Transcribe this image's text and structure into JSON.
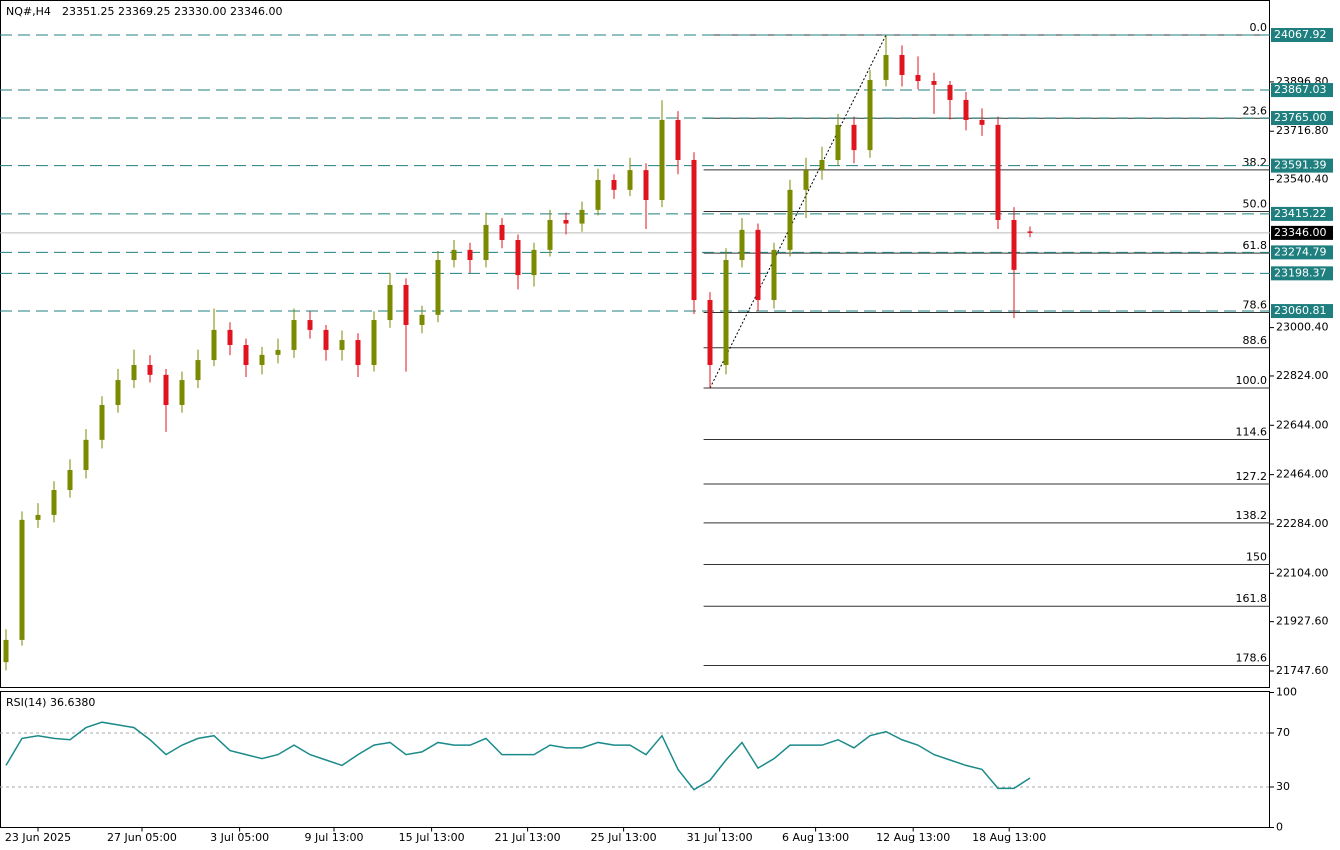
{
  "header": {
    "symbol": "NQ#,H4",
    "open": "23351.25",
    "high": "23369.25",
    "low": "23330.00",
    "close": "23346.00"
  },
  "chart_data": {
    "type": "candlestick",
    "bull_color": "#7b8a00",
    "bear_color": "#e0141e",
    "xlim": [
      -0.375,
      79
    ],
    "ylim": [
      21685.6,
      24195.6
    ],
    "xticks": [
      {
        "value": 2,
        "label": "23 Jun 2025"
      },
      {
        "value": 8.5,
        "label": "27 Jun 05:00"
      },
      {
        "value": 14.6,
        "label": "3 Jul 05:00"
      },
      {
        "value": 20.5,
        "label": "9 Jul 13:00"
      },
      {
        "value": 26.6,
        "label": "15 Jul 13:00"
      },
      {
        "value": 32.6,
        "label": "21 Jul 13:00"
      },
      {
        "value": 38.6,
        "label": "25 Jul 13:00"
      },
      {
        "value": 44.6,
        "label": "31 Jul 13:00"
      },
      {
        "value": 50.6,
        "label": "6 Aug 13:00"
      },
      {
        "value": 56.7,
        "label": "12 Aug 13:00"
      },
      {
        "value": 62.7,
        "label": "18 Aug 13:00"
      }
    ],
    "yticks": [
      {
        "value": 23896.8,
        "label": "23896.80"
      },
      {
        "value": 23716.8,
        "label": "23716.80"
      },
      {
        "value": 23540.4,
        "label": "23540.40"
      },
      {
        "value": 23000.4,
        "label": "23000.40"
      },
      {
        "value": 22824,
        "label": "22824.00"
      },
      {
        "value": 22644,
        "label": "22644.00"
      },
      {
        "value": 22464,
        "label": "22464.00"
      },
      {
        "value": 22284,
        "label": "22284.00"
      },
      {
        "value": 22104,
        "label": "22104.00"
      },
      {
        "value": 21927.6,
        "label": "21927.60"
      },
      {
        "value": 21747.6,
        "label": "21747.60"
      }
    ],
    "levels": [
      {
        "value": 24067.92,
        "label": "24067.92"
      },
      {
        "value": 23867.03,
        "label": "23867.03"
      },
      {
        "value": 23765,
        "label": "23765.00"
      },
      {
        "value": 23591.39,
        "label": "23591.39"
      },
      {
        "value": 23415.22,
        "label": "23415.22"
      },
      {
        "value": 23274.79,
        "label": "23274.79"
      },
      {
        "value": 23198.37,
        "label": "23198.37"
      },
      {
        "value": 23060.81,
        "label": "23060.81"
      }
    ],
    "level_color": "#1f7f7f",
    "current_price": {
      "value": 23346,
      "label": "23346.00"
    },
    "fib": {
      "high": 24067.92,
      "low": 22780,
      "start": 43.6,
      "levels": [
        {
          "value": 0,
          "label": "0.0"
        },
        23.6,
        38.2,
        {
          "value": 50,
          "label": "50.0"
        },
        61.8,
        78.6,
        88.6,
        {
          "value": 100,
          "label": "100.0"
        },
        114.6,
        127.2,
        138.2,
        150,
        161.8,
        178.6
      ]
    },
    "candles": [
      [
        21780,
        21900,
        21750,
        21861
      ],
      [
        21861,
        22330,
        21840,
        22299
      ],
      [
        22299,
        22360,
        22270,
        22317
      ],
      [
        22317,
        22440,
        22290,
        22408
      ],
      [
        22408,
        22520,
        22380,
        22481
      ],
      [
        22481,
        22630,
        22450,
        22591
      ],
      [
        22591,
        22750,
        22560,
        22718
      ],
      [
        22718,
        22850,
        22690,
        22809
      ],
      [
        22809,
        22920,
        22780,
        22864
      ],
      [
        22864,
        22900,
        22800,
        22828
      ],
      [
        22828,
        22850,
        22620,
        22718
      ],
      [
        22718,
        22840,
        22690,
        22809
      ],
      [
        22809,
        22920,
        22780,
        22882
      ],
      [
        22882,
        23070,
        22860,
        22992
      ],
      [
        22992,
        23020,
        22900,
        22937
      ],
      [
        22937,
        22960,
        22820,
        22864
      ],
      [
        22864,
        22930,
        22830,
        22901
      ],
      [
        22901,
        22960,
        22870,
        22919
      ],
      [
        22919,
        23070,
        22890,
        23028
      ],
      [
        23028,
        23060,
        22960,
        22992
      ],
      [
        22992,
        23010,
        22880,
        22919
      ],
      [
        22919,
        22990,
        22880,
        22955
      ],
      [
        22955,
        22980,
        22820,
        22864
      ],
      [
        22864,
        23060,
        22840,
        23028
      ],
      [
        23028,
        23200,
        23000,
        23156
      ],
      [
        23156,
        23180,
        22840,
        23010
      ],
      [
        23010,
        23080,
        22980,
        23047
      ],
      [
        23047,
        23280,
        23020,
        23247
      ],
      [
        23247,
        23320,
        23220,
        23284
      ],
      [
        23284,
        23310,
        23200,
        23247
      ],
      [
        23247,
        23420,
        23220,
        23375
      ],
      [
        23375,
        23400,
        23290,
        23320
      ],
      [
        23320,
        23340,
        23140,
        23192
      ],
      [
        23192,
        23310,
        23150,
        23284
      ],
      [
        23284,
        23430,
        23260,
        23393
      ],
      [
        23393,
        23420,
        23340,
        23380
      ],
      [
        23380,
        23460,
        23350,
        23430
      ],
      [
        23430,
        23580,
        23410,
        23539
      ],
      [
        23539,
        23560,
        23470,
        23503
      ],
      [
        23503,
        23620,
        23480,
        23575
      ],
      [
        23575,
        23600,
        23360,
        23466
      ],
      [
        23466,
        23830,
        23440,
        23758
      ],
      [
        23758,
        23790,
        23560,
        23612
      ],
      [
        23612,
        23640,
        23050,
        23101
      ],
      [
        23101,
        23130,
        22780,
        22864
      ],
      [
        22864,
        23290,
        22830,
        23247
      ],
      [
        23247,
        23400,
        23220,
        23357
      ],
      [
        23357,
        23380,
        23060,
        23101
      ],
      [
        23101,
        23310,
        23070,
        23284
      ],
      [
        23284,
        23540,
        23260,
        23503
      ],
      [
        23503,
        23620,
        23400,
        23575
      ],
      [
        23575,
        23660,
        23540,
        23612
      ],
      [
        23612,
        23780,
        23590,
        23740
      ],
      [
        23740,
        23770,
        23600,
        23648
      ],
      [
        23648,
        23940,
        23620,
        23904
      ],
      [
        23904,
        24068,
        23880,
        23995
      ],
      [
        23995,
        24030,
        23880,
        23922
      ],
      [
        23922,
        23990,
        23870,
        23900
      ],
      [
        23900,
        23930,
        23780,
        23886
      ],
      [
        23886,
        23900,
        23760,
        23831
      ],
      [
        23831,
        23860,
        23720,
        23758
      ],
      [
        23758,
        23800,
        23700,
        23740
      ],
      [
        23740,
        23770,
        23360,
        23393
      ],
      [
        23393,
        23440,
        23035,
        23211
      ],
      [
        23351.25,
        23369.25,
        23330,
        23346
      ]
    ],
    "rsi": {
      "label": "RSI(14) 36.6380",
      "color": "#1a8a8a",
      "ylim": [
        0,
        100
      ],
      "yticks": [
        100,
        70,
        30,
        0
      ],
      "levels": [
        70,
        30
      ],
      "values": [
        46,
        66,
        68,
        66,
        65,
        74,
        78,
        76,
        74,
        65,
        54,
        61,
        66,
        68,
        57,
        54,
        51,
        54,
        61,
        54,
        50,
        46,
        54,
        61,
        63,
        54,
        56,
        63,
        61,
        61,
        66,
        54,
        54,
        54,
        61,
        59,
        59,
        63,
        61,
        61,
        54,
        68,
        43,
        28,
        35,
        50,
        63,
        44,
        51,
        61,
        61,
        61,
        65,
        59,
        68,
        71,
        65,
        61,
        54,
        50,
        46,
        43,
        29,
        29,
        36.638
      ]
    }
  }
}
